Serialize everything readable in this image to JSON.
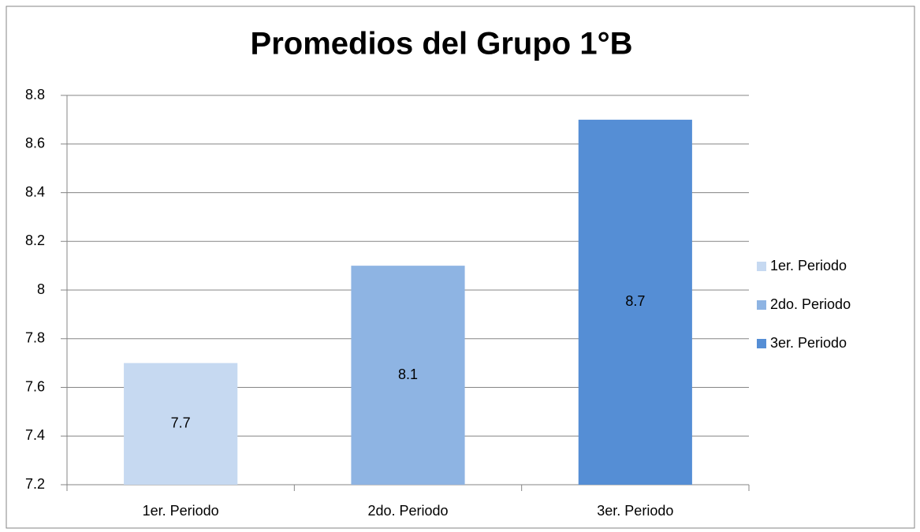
{
  "chart_data": {
    "type": "bar",
    "title": "Promedios del Grupo 1°B",
    "categories": [
      "1er. Periodo",
      "2do. Periodo",
      "3er. Periodo"
    ],
    "values": [
      7.7,
      8.1,
      8.7
    ],
    "colors": [
      "#c6d9f1",
      "#8eb4e3",
      "#558ed5"
    ],
    "ylim": [
      7.2,
      8.8
    ],
    "yticks": [
      7.2,
      7.4,
      7.6,
      7.8,
      8,
      8.2,
      8.4,
      8.6,
      8.8
    ],
    "grid": true,
    "legend": "right"
  }
}
